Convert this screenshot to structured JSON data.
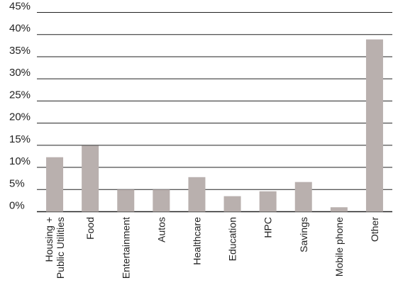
{
  "chart_data": {
    "type": "bar",
    "title": "",
    "xlabel": "",
    "ylabel": "",
    "ylim": [
      0,
      45
    ],
    "yticks": [
      "0%",
      "5%",
      "10%",
      "15%",
      "20%",
      "25%",
      "30%",
      "35%",
      "40%",
      "45%"
    ],
    "grid": true,
    "categories": [
      [
        "Housing +",
        "Public Utilities"
      ],
      [
        "Food"
      ],
      [
        "Entertainment"
      ],
      [
        "Autos"
      ],
      [
        "Healthcare"
      ],
      [
        "Education"
      ],
      [
        "HPC"
      ],
      [
        "Savings"
      ],
      [
        "Mobile phone"
      ],
      [
        "Other"
      ]
    ],
    "values": [
      12.3,
      14.9,
      5.0,
      5.0,
      7.8,
      3.5,
      4.6,
      6.7,
      1.0,
      38.9
    ],
    "bar_color": "#b9b0ae",
    "grid_color": "#222222"
  }
}
